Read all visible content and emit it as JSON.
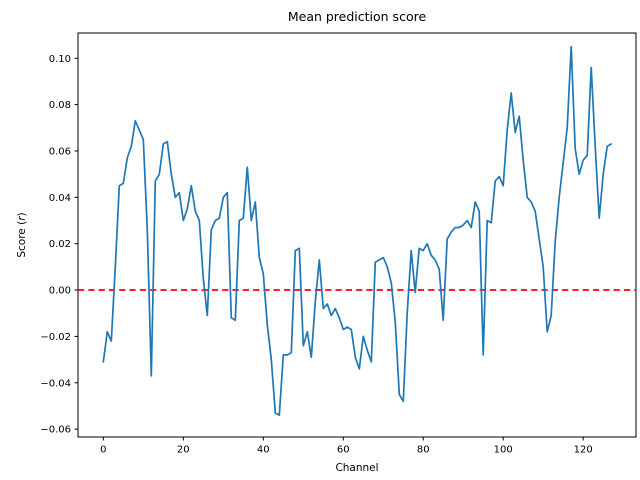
{
  "chart_data": {
    "type": "line",
    "title": "Mean prediction score",
    "xlabel": "Channel",
    "ylabel": "Score (r)",
    "ylabel_parts": [
      {
        "text": "Score (",
        "italic": false
      },
      {
        "text": "r",
        "italic": true
      },
      {
        "text": ")",
        "italic": false
      }
    ],
    "x_start": 0,
    "x_step": 1,
    "n_points": 128,
    "series": [
      {
        "name": "mean prediction score by channel",
        "color": "#1f77b4",
        "values": [
          -0.031,
          -0.018,
          -0.022,
          0.01,
          0.045,
          0.046,
          0.057,
          0.062,
          0.073,
          0.069,
          0.065,
          0.026,
          -0.037,
          0.047,
          0.05,
          0.063,
          0.064,
          0.05,
          0.04,
          0.042,
          0.03,
          0.035,
          0.045,
          0.034,
          0.03,
          0.005,
          -0.011,
          0.026,
          0.03,
          0.031,
          0.04,
          0.042,
          -0.012,
          -0.013,
          0.03,
          0.031,
          0.053,
          0.03,
          0.038,
          0.014,
          0.007,
          -0.015,
          -0.03,
          -0.053,
          -0.054,
          -0.028,
          -0.028,
          -0.027,
          0.017,
          0.018,
          -0.024,
          -0.018,
          -0.029,
          -0.005,
          0.013,
          -0.008,
          -0.006,
          -0.011,
          -0.008,
          -0.012,
          -0.017,
          -0.016,
          -0.017,
          -0.029,
          -0.034,
          -0.02,
          -0.026,
          -0.031,
          0.012,
          0.013,
          0.014,
          0.01,
          0.003,
          -0.014,
          -0.045,
          -0.048,
          -0.01,
          0.017,
          -0.001,
          0.018,
          0.017,
          0.02,
          0.015,
          0.013,
          0.009,
          -0.013,
          0.022,
          0.025,
          0.027,
          0.027,
          0.028,
          0.03,
          0.027,
          0.038,
          0.034,
          -0.028,
          0.03,
          0.029,
          0.047,
          0.049,
          0.045,
          0.069,
          0.085,
          0.068,
          0.075,
          0.056,
          0.04,
          0.038,
          0.034,
          0.022,
          0.01,
          -0.018,
          -0.011,
          0.021,
          0.04,
          0.055,
          0.07,
          0.105,
          0.061,
          0.05,
          0.056,
          0.058,
          0.096,
          0.062,
          0.031,
          0.05,
          0.062,
          0.063
        ]
      }
    ],
    "reference_lines": [
      {
        "y": 0.0,
        "color": "#ff0000",
        "style": "dashed"
      }
    ],
    "xticks": [
      0,
      20,
      40,
      60,
      80,
      100,
      120
    ],
    "yticks": [
      -0.06,
      -0.04,
      -0.02,
      0.0,
      0.02,
      0.04,
      0.06,
      0.08,
      0.1
    ],
    "xlim": [
      -6.33,
      133.2
    ],
    "ylim": [
      -0.0634,
      0.1109
    ],
    "grid": false,
    "legend": null,
    "line_color": "#1f77b4",
    "zero_line_color": "#ff0000",
    "background_color": "#ffffff",
    "spine_color": "#000000"
  }
}
